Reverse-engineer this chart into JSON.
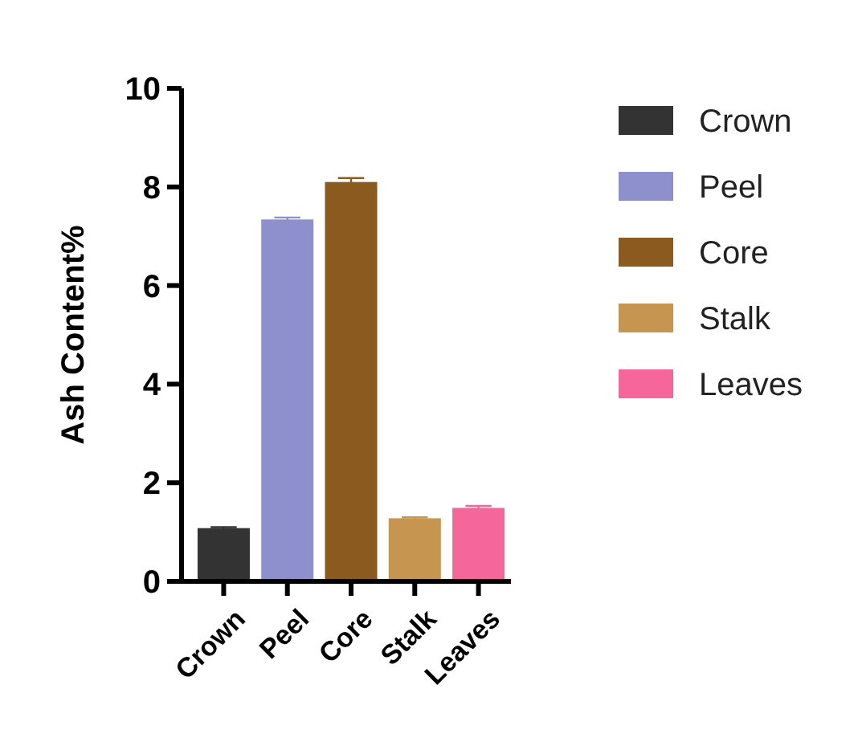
{
  "chart_data": {
    "type": "bar",
    "ylabel": "Ash Content%",
    "stacked": true,
    "categories": [
      "Crown",
      "Peel",
      "Core",
      "Stalk",
      "Leaves"
    ],
    "series": [
      {
        "name": "Crown",
        "color": "#333333",
        "values": [
          1.08,
          null,
          null,
          null,
          null
        ],
        "errors": [
          0.02,
          null,
          null,
          null,
          null
        ]
      },
      {
        "name": "Peel",
        "color": "#8d90cc",
        "values": [
          null,
          7.34,
          null,
          null,
          null
        ],
        "errors": [
          null,
          0.04,
          null,
          null,
          null
        ]
      },
      {
        "name": "Core",
        "color": "#8b5a1e",
        "values": [
          null,
          null,
          8.1,
          null,
          null
        ],
        "errors": [
          null,
          null,
          0.08,
          null,
          null
        ]
      },
      {
        "name": "Stalk",
        "color": "#c6954f",
        "values": [
          null,
          null,
          null,
          1.28,
          null
        ],
        "errors": [
          null,
          null,
          null,
          0.02,
          null
        ]
      },
      {
        "name": "Leaves",
        "color": "#f5679a",
        "values": [
          null,
          null,
          null,
          null,
          1.49
        ],
        "errors": [
          null,
          null,
          null,
          null,
          0.04
        ]
      }
    ],
    "ylim": [
      0,
      10
    ],
    "yticks": [
      0,
      2,
      4,
      6,
      8,
      10
    ],
    "legend": "right",
    "grid": false
  }
}
